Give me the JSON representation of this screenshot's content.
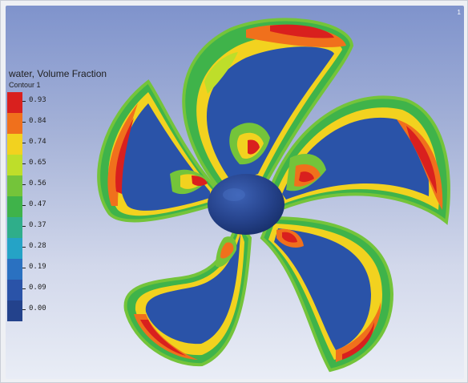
{
  "legend": {
    "title": "water, Volume Fraction",
    "subtitle": "Contour 1",
    "entries": [
      {
        "value": "0.93",
        "color": "#d9201e"
      },
      {
        "value": "0.84",
        "color": "#f0701c"
      },
      {
        "value": "0.74",
        "color": "#f2d21f"
      },
      {
        "value": "0.65",
        "color": "#bede2a"
      },
      {
        "value": "0.56",
        "color": "#74c43a"
      },
      {
        "value": "0.47",
        "color": "#3fb34a"
      },
      {
        "value": "0.37",
        "color": "#2fae8a"
      },
      {
        "value": "0.28",
        "color": "#25a3c6"
      },
      {
        "value": "0.19",
        "color": "#2a71c1"
      },
      {
        "value": "0.09",
        "color": "#2a53a8"
      },
      {
        "value": "0.00",
        "color": "#23428c"
      }
    ]
  },
  "corner_mark": "1",
  "colors": {
    "blade_base": "#2b4f9e",
    "hub": "#29468f"
  }
}
